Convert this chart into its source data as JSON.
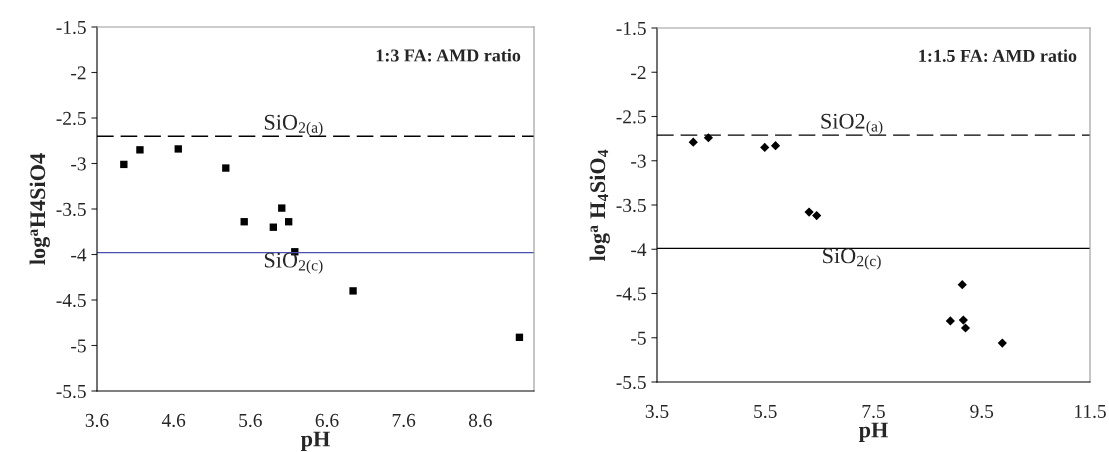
{
  "chart_data": [
    {
      "type": "scatter",
      "title": "1:3 FA: AMD ratio",
      "xlabel": "pH",
      "ylabel": "log$^{a}$H4SiO4",
      "marker": "square",
      "grid": false,
      "legend": false,
      "xlim": [
        3.6,
        9.3
      ],
      "xticks": [
        3.6,
        4.6,
        5.6,
        6.6,
        7.6,
        8.6
      ],
      "ylim": [
        -5.5,
        -1.5
      ],
      "yticks": [
        -5.5,
        -5,
        -4.5,
        -4,
        -3.5,
        -3,
        -2.5,
        -2,
        -1.5
      ],
      "series": [
        {
          "color": "#000000",
          "x": [
            3.95,
            4.16,
            4.66,
            5.28,
            5.52,
            5.9,
            6.01,
            6.1,
            6.18,
            6.94,
            9.11
          ],
          "values": [
            -3.01,
            -2.85,
            -2.84,
            -3.05,
            -3.64,
            -3.7,
            -3.49,
            -3.64,
            -3.97,
            -4.4,
            -4.91
          ]
        }
      ],
      "ref_lines": [
        {
          "axis": "y",
          "value": -2.7,
          "label": "SiO$_{2(a)}$",
          "color": "#000000",
          "line_style": "dashed"
        },
        {
          "axis": "y",
          "value": -3.98,
          "label": "SiO$_{2(c)}$",
          "color": "#4a4fb0",
          "line_style": "solid"
        }
      ]
    },
    {
      "type": "scatter",
      "title": "1:1.5 FA: AMD ratio",
      "xlabel": "pH",
      "ylabel": "log$^{a}$ H$_{4}$SiO$_{4}$",
      "marker": "diamond",
      "grid": false,
      "legend": false,
      "xlim": [
        3.5,
        11.5
      ],
      "xticks": [
        3.5,
        5.5,
        7.5,
        9.5,
        11.5
      ],
      "ylim": [
        -5.5,
        -1.5
      ],
      "yticks": [
        -5.5,
        -5,
        -4.5,
        -4,
        -3.5,
        -3,
        -2.5,
        -2,
        -1.5
      ],
      "series": [
        {
          "color": "#000000",
          "x": [
            4.17,
            4.45,
            5.49,
            5.69,
            6.31,
            6.45,
            8.92,
            9.14,
            9.16,
            9.2,
            9.88
          ],
          "values": [
            -2.79,
            -2.74,
            -2.85,
            -2.83,
            -3.58,
            -3.62,
            -4.81,
            -4.4,
            -4.8,
            -4.89,
            -5.06
          ]
        }
      ],
      "ref_lines": [
        {
          "axis": "y",
          "value": -2.71,
          "label": "SiO2$_{(a)}$",
          "color": "#000000",
          "line_style": "dashed"
        },
        {
          "axis": "y",
          "value": -3.99,
          "label": "SiO$_{2(c)}$",
          "color": "#000000",
          "line_style": "solid"
        }
      ]
    }
  ]
}
